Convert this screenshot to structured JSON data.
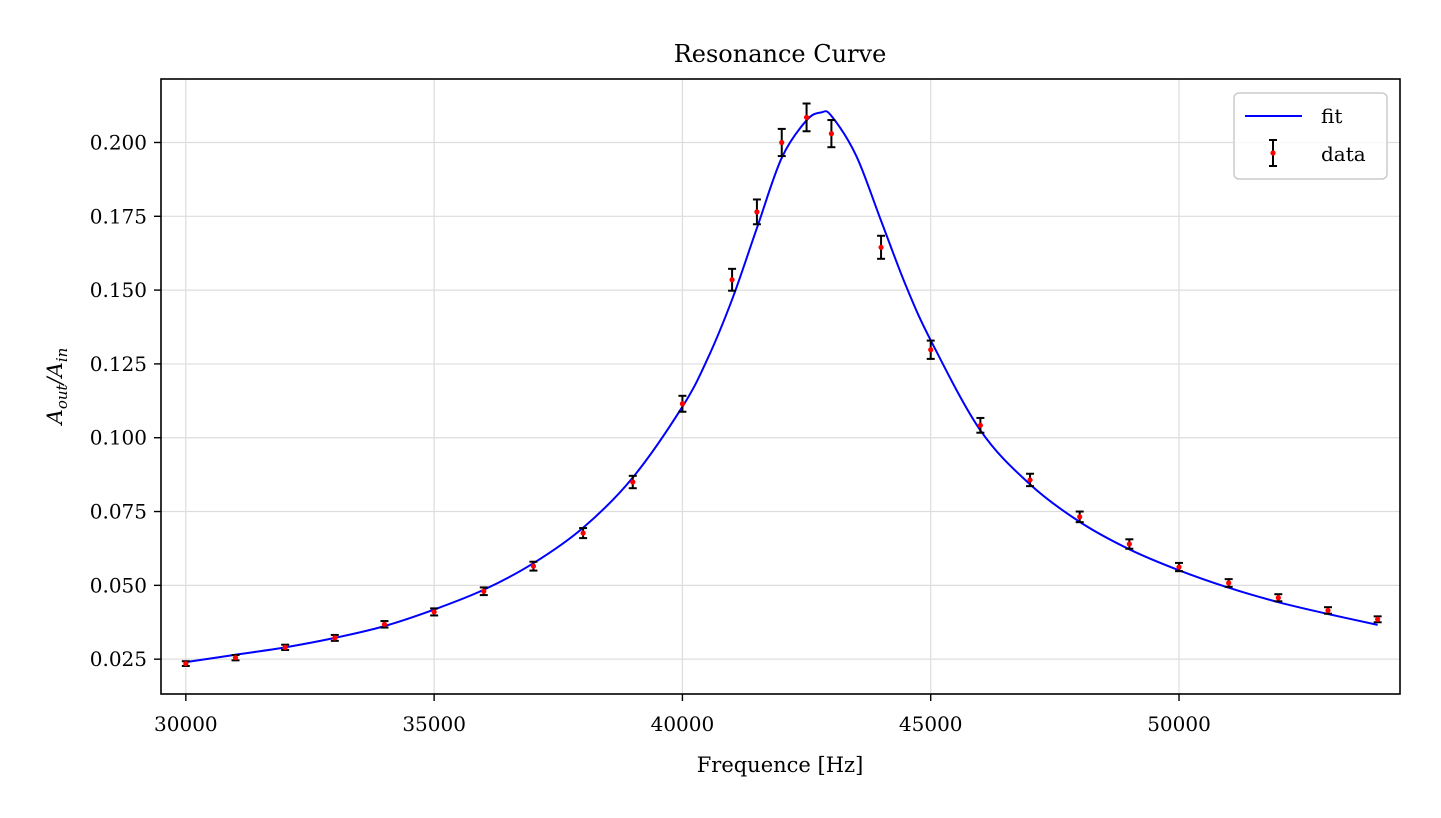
{
  "chart_data": {
    "type": "scatter",
    "title": "Resonance Curve",
    "xlabel": "Frequence [Hz]",
    "ylabel": "A_out/A_in",
    "ylabel_main": "A",
    "ylabel_sub_num": "out",
    "ylabel_sep": "/A",
    "ylabel_sub_den": "in",
    "xlim": [
      29500,
      54450
    ],
    "ylim": [
      0.0132,
      0.2215
    ],
    "xticks": [
      30000,
      35000,
      40000,
      45000,
      50000
    ],
    "xtick_labels": [
      "30000",
      "35000",
      "40000",
      "45000",
      "50000"
    ],
    "yticks": [
      0.025,
      0.05,
      0.075,
      0.1,
      0.125,
      0.15,
      0.175,
      0.2
    ],
    "ytick_labels": [
      "0.025",
      "0.050",
      "0.075",
      "0.100",
      "0.125",
      "0.150",
      "0.175",
      "0.200"
    ],
    "grid": true,
    "legend_position": "top-right",
    "colors": {
      "fit": "#0000ff",
      "data": "#ff0000",
      "errorbar": "#000000",
      "grid": "#dddddd"
    },
    "series": [
      {
        "name": "fit",
        "kind": "line",
        "x": [
          30000,
          31000,
          32000,
          33000,
          34000,
          35000,
          36000,
          37000,
          38000,
          39000,
          40000,
          40500,
          41000,
          41500,
          42000,
          42500,
          42800,
          43000,
          43500,
          44000,
          44500,
          45000,
          46000,
          47000,
          48000,
          49000,
          50000,
          51000,
          52000,
          53000,
          54000
        ],
        "y": [
          0.024,
          0.0265,
          0.029,
          0.0322,
          0.0362,
          0.0418,
          0.0485,
          0.0575,
          0.0695,
          0.0865,
          0.1105,
          0.1265,
          0.1468,
          0.171,
          0.1948,
          0.2075,
          0.2102,
          0.209,
          0.1955,
          0.1735,
          0.1515,
          0.133,
          0.1025,
          0.0842,
          0.0715,
          0.0622,
          0.0551,
          0.0492,
          0.0443,
          0.0403,
          0.0366
        ]
      },
      {
        "name": "data",
        "kind": "errorbar",
        "x": [
          30000,
          31000,
          32000,
          33000,
          34000,
          35000,
          36000,
          37000,
          38000,
          39000,
          40000,
          41000,
          41500,
          42000,
          42500,
          43000,
          44000,
          45000,
          46000,
          47000,
          48000,
          49000,
          50000,
          51000,
          52000,
          53000,
          54000
        ],
        "y": [
          0.0235,
          0.0255,
          0.029,
          0.0322,
          0.0368,
          0.041,
          0.048,
          0.0565,
          0.0677,
          0.085,
          0.1115,
          0.1535,
          0.1765,
          0.2,
          0.2085,
          0.203,
          0.1645,
          0.1298,
          0.1042,
          0.0857,
          0.0732,
          0.064,
          0.0562,
          0.0508,
          0.0458,
          0.0415,
          0.0385
        ],
        "yerr": [
          0.0008,
          0.0009,
          0.0009,
          0.001,
          0.0011,
          0.0012,
          0.0013,
          0.0015,
          0.0017,
          0.0021,
          0.0027,
          0.0037,
          0.0042,
          0.0046,
          0.0047,
          0.0046,
          0.0039,
          0.0031,
          0.0025,
          0.0021,
          0.0018,
          0.0016,
          0.0014,
          0.0013,
          0.0012,
          0.0011,
          0.001
        ]
      }
    ]
  }
}
